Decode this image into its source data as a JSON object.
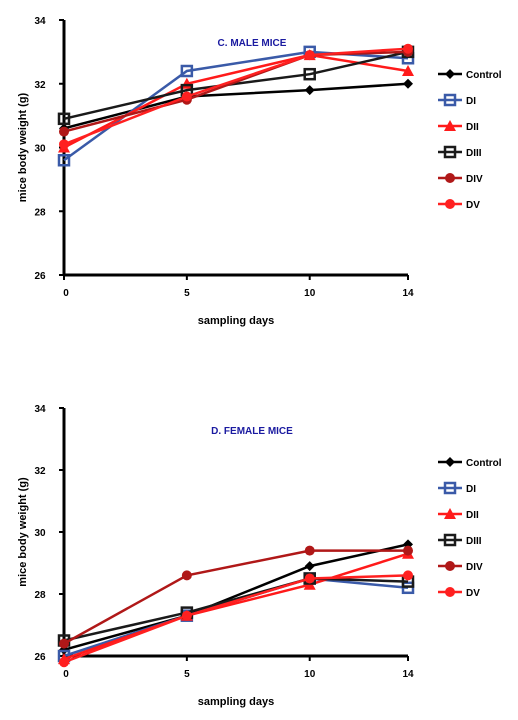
{
  "chart_data": [
    {
      "type": "line",
      "title": "C. MALE MICE",
      "xlabel": "sampling days",
      "ylabel": "mice body weight (g)",
      "x": [
        0,
        5,
        10,
        14
      ],
      "x_ticks": [
        "0",
        "5",
        "10",
        "14"
      ],
      "ylim": [
        26,
        34
      ],
      "y_ticks": [
        "26",
        "28",
        "30",
        "32",
        "34"
      ],
      "legend_position": "right",
      "series": [
        {
          "name": "Control",
          "values": [
            30.6,
            31.6,
            31.8,
            32.0
          ],
          "color": "#000000",
          "marker": "diamond"
        },
        {
          "name": "DI",
          "values": [
            29.6,
            32.4,
            33.0,
            32.8
          ],
          "color": "#3a5aa8",
          "marker": "square"
        },
        {
          "name": "DII",
          "values": [
            30.0,
            32.0,
            32.9,
            32.4
          ],
          "color": "#ff1a1a",
          "marker": "triangle"
        },
        {
          "name": "DIII",
          "values": [
            30.9,
            31.8,
            32.3,
            33.0
          ],
          "color": "#1a1a1a",
          "marker": "square"
        },
        {
          "name": "DIV",
          "values": [
            30.5,
            31.5,
            32.9,
            33.0
          ],
          "color": "#b01818",
          "marker": "circle"
        },
        {
          "name": "DV",
          "values": [
            30.1,
            31.6,
            32.9,
            33.1
          ],
          "color": "#ff2020",
          "marker": "circle"
        }
      ]
    },
    {
      "type": "line",
      "title": "D. FEMALE MICE",
      "xlabel": "sampling days",
      "ylabel": "mice body weight (g)",
      "x": [
        0,
        5,
        10,
        14
      ],
      "x_ticks": [
        "0",
        "5",
        "10",
        "14"
      ],
      "ylim": [
        26,
        34
      ],
      "y_ticks": [
        "26",
        "28",
        "30",
        "32",
        "34"
      ],
      "legend_position": "right",
      "series": [
        {
          "name": "Control",
          "values": [
            26.2,
            27.3,
            28.9,
            29.6
          ],
          "color": "#000000",
          "marker": "diamond"
        },
        {
          "name": "DI",
          "values": [
            26.0,
            27.3,
            28.5,
            28.2
          ],
          "color": "#3a5aa8",
          "marker": "square"
        },
        {
          "name": "DII",
          "values": [
            25.9,
            27.3,
            28.3,
            29.3
          ],
          "color": "#ff1a1a",
          "marker": "triangle"
        },
        {
          "name": "DIII",
          "values": [
            26.5,
            27.4,
            28.5,
            28.4
          ],
          "color": "#1a1a1a",
          "marker": "square"
        },
        {
          "name": "DIV",
          "values": [
            26.4,
            28.6,
            29.4,
            29.4
          ],
          "color": "#b01818",
          "marker": "circle"
        },
        {
          "name": "DV",
          "values": [
            25.8,
            27.3,
            28.5,
            28.6
          ],
          "color": "#ff2020",
          "marker": "circle"
        }
      ]
    }
  ]
}
